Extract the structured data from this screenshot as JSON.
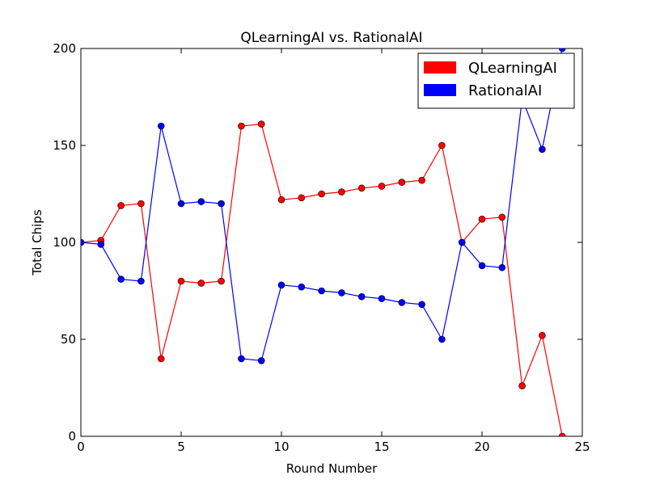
{
  "chart_data": {
    "type": "line",
    "title": "QLearningAI vs. RationalAI",
    "xlabel": "Round Number",
    "ylabel": "Total Chips",
    "xlim": [
      0,
      25
    ],
    "ylim": [
      0,
      200
    ],
    "xticks": [
      "0",
      "5",
      "10",
      "15",
      "20",
      "25"
    ],
    "yticks": [
      "0",
      "50",
      "100",
      "150",
      "200"
    ],
    "legend_position": "top-right",
    "grid": false,
    "x": [
      0,
      1,
      2,
      3,
      4,
      5,
      6,
      7,
      8,
      9,
      10,
      11,
      12,
      13,
      14,
      15,
      16,
      17,
      18,
      19,
      20,
      21,
      22,
      23,
      24
    ],
    "series": [
      {
        "name": "QLearningAI",
        "color": "#ff0000",
        "values": [
          100,
          101,
          119,
          120,
          40,
          80,
          79,
          80,
          160,
          161,
          122,
          123,
          125,
          126,
          128,
          129,
          131,
          132,
          150,
          100,
          112,
          113,
          26,
          52,
          0
        ]
      },
      {
        "name": "RationalAI",
        "color": "#0000ff",
        "values": [
          100,
          99,
          81,
          80,
          160,
          120,
          121,
          120,
          40,
          39,
          78,
          77,
          75,
          74,
          72,
          71,
          69,
          68,
          50,
          100,
          88,
          87,
          174,
          148,
          200
        ]
      }
    ]
  }
}
